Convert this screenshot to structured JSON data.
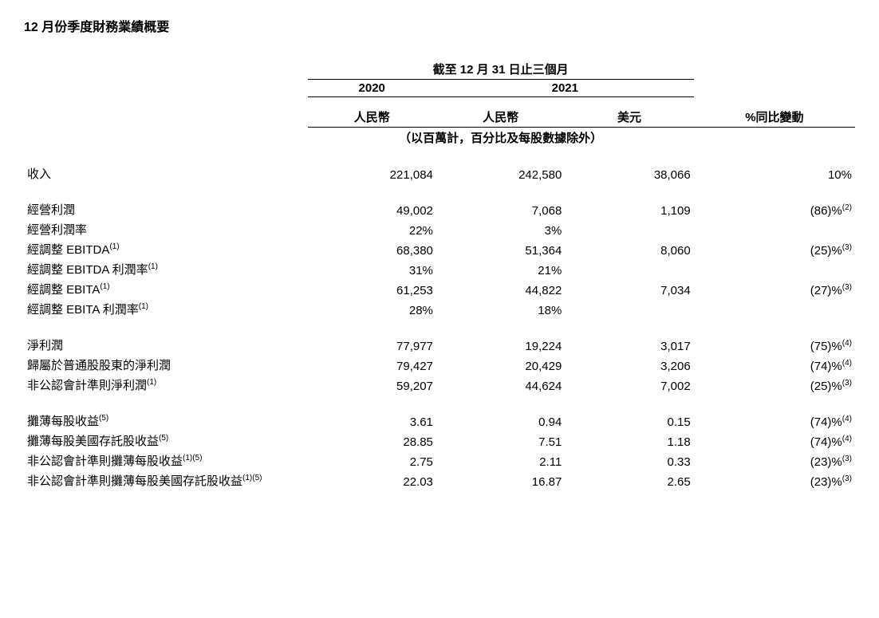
{
  "title": "12 月份季度財務業績概要",
  "header": {
    "period": "截至 12 月 31 日止三個月",
    "y2020": "2020",
    "y2021": "2021",
    "rmb": "人民幣",
    "usd": "美元",
    "yoy": "%同比變動",
    "note": "（以百萬計，百分比及每股數據除外）"
  },
  "rows": {
    "revenue": {
      "label": "收入",
      "sup": "",
      "c1": "221,084",
      "c2": "242,580",
      "c3": "38,066",
      "c4": "10%",
      "c4sup": ""
    },
    "op_income": {
      "label": "經營利潤",
      "sup": "",
      "c1": "49,002",
      "c2": "7,068",
      "c3": "1,109",
      "c4": "(86)%",
      "c4sup": "(2)"
    },
    "op_margin": {
      "label": "經營利潤率",
      "sup": "",
      "c1": "22%",
      "c2": "3%",
      "c3": "",
      "c4": "",
      "c4sup": ""
    },
    "adj_ebitda": {
      "label": "經調整 EBITDA",
      "sup": "(1)",
      "c1": "68,380",
      "c2": "51,364",
      "c3": "8,060",
      "c4": "(25)%",
      "c4sup": "(3)"
    },
    "adj_ebitda_m": {
      "label": "經調整 EBITDA 利潤率",
      "sup": "(1)",
      "c1": "31%",
      "c2": "21%",
      "c3": "",
      "c4": "",
      "c4sup": ""
    },
    "adj_ebita": {
      "label": "經調整 EBITA",
      "sup": "(1)",
      "c1": "61,253",
      "c2": "44,822",
      "c3": "7,034",
      "c4": "(27)%",
      "c4sup": "(3)"
    },
    "adj_ebita_m": {
      "label": "經調整 EBITA 利潤率",
      "sup": "(1)",
      "c1": "28%",
      "c2": "18%",
      "c3": "",
      "c4": "",
      "c4sup": ""
    },
    "net_income": {
      "label": "淨利潤",
      "sup": "",
      "c1": "77,977",
      "c2": "19,224",
      "c3": "3,017",
      "c4": "(75)%",
      "c4sup": "(4)"
    },
    "net_inc_ord": {
      "label": "歸屬於普通股股東的淨利潤",
      "sup": "",
      "c1": "79,427",
      "c2": "20,429",
      "c3": "3,206",
      "c4": "(74)%",
      "c4sup": "(4)"
    },
    "nongaap_net": {
      "label": "非公認會計準則淨利潤",
      "sup": "(1)",
      "c1": "59,207",
      "c2": "44,624",
      "c3": "7,002",
      "c4": "(25)%",
      "c4sup": "(3)"
    },
    "diluted_eps": {
      "label": "攤薄每股收益",
      "sup": "(5)",
      "c1": "3.61",
      "c2": "0.94",
      "c3": "0.15",
      "c4": "(74)%",
      "c4sup": "(4)"
    },
    "diluted_ads": {
      "label": "攤薄每股美國存託股收益",
      "sup": "(5)",
      "c1": "28.85",
      "c2": "7.51",
      "c3": "1.18",
      "c4": "(74)%",
      "c4sup": "(4)"
    },
    "nongaap_eps": {
      "label": "非公認會計準則攤薄每股收益",
      "sup": "(1)(5)",
      "c1": "2.75",
      "c2": "2.11",
      "c3": "0.33",
      "c4": "(23)%",
      "c4sup": "(3)"
    },
    "nongaap_ads": {
      "label": "非公認會計準則攤薄每股美國存託股收益",
      "sup": "(1)(5)",
      "c1": "22.03",
      "c2": "16.87",
      "c3": "2.65",
      "c4": "(23)%",
      "c4sup": "(3)"
    }
  }
}
